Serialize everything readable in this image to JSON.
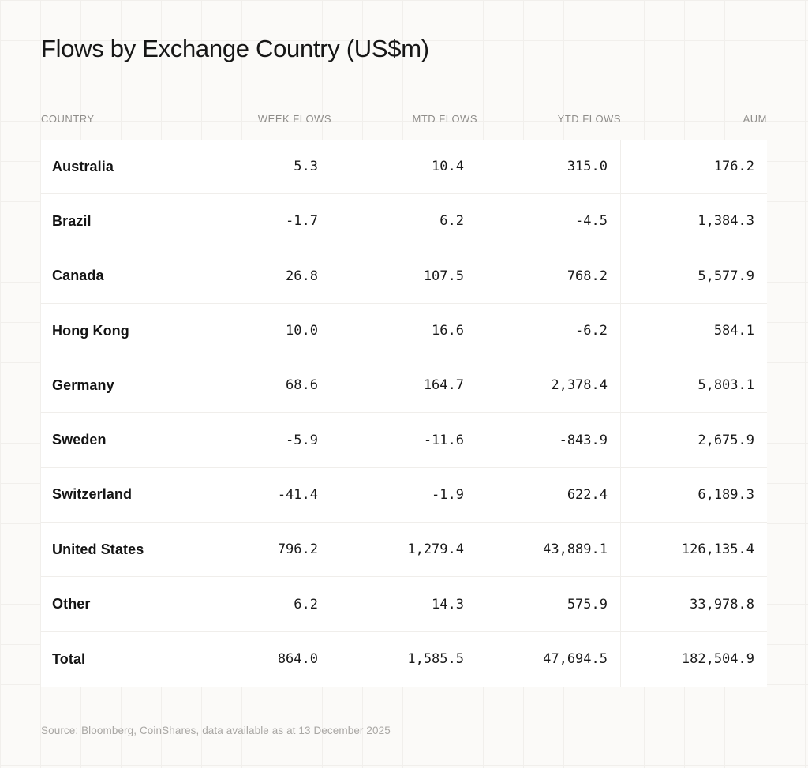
{
  "title": "Flows by Exchange Country (US$m)",
  "columns": {
    "country": "COUNTRY",
    "week": "WEEK FLOWS",
    "mtd": "MTD FLOWS",
    "ytd": "YTD FLOWS",
    "aum": "AUM"
  },
  "table": {
    "rows": [
      {
        "country": "Australia",
        "week": "5.3",
        "mtd": "10.4",
        "ytd": "315.0",
        "aum": "176.2"
      },
      {
        "country": "Brazil",
        "week": "-1.7",
        "mtd": "6.2",
        "ytd": "-4.5",
        "aum": "1,384.3"
      },
      {
        "country": "Canada",
        "week": "26.8",
        "mtd": "107.5",
        "ytd": "768.2",
        "aum": "5,577.9"
      },
      {
        "country": "Hong Kong",
        "week": "10.0",
        "mtd": "16.6",
        "ytd": "-6.2",
        "aum": "584.1"
      },
      {
        "country": "Germany",
        "week": "68.6",
        "mtd": "164.7",
        "ytd": "2,378.4",
        "aum": "5,803.1"
      },
      {
        "country": "Sweden",
        "week": "-5.9",
        "mtd": "-11.6",
        "ytd": "-843.9",
        "aum": "2,675.9"
      },
      {
        "country": "Switzerland",
        "week": "-41.4",
        "mtd": "-1.9",
        "ytd": "622.4",
        "aum": "6,189.3"
      },
      {
        "country": "United States",
        "week": "796.2",
        "mtd": "1,279.4",
        "ytd": "43,889.1",
        "aum": "126,135.4"
      },
      {
        "country": "Other",
        "week": "6.2",
        "mtd": "14.3",
        "ytd": "575.9",
        "aum": "33,978.8"
      },
      {
        "country": "Total",
        "week": "864.0",
        "mtd": "1,585.5",
        "ytd": "47,694.5",
        "aum": "182,504.9"
      }
    ]
  },
  "footer": {
    "source": "Source: Bloomberg, CoinShares, data available as at 13 December 2025"
  },
  "colors": {
    "page_background": "#fbfaf8",
    "grid_line": "#f1efec",
    "table_background": "#ffffff",
    "cell_border": "#f0eeeb",
    "text": "#161616",
    "column_header": "#8f8d8a",
    "source_text": "#a9a7a4"
  },
  "chart_data": {
    "type": "table",
    "title": "Flows by Exchange Country (US$m)",
    "columns": [
      "COUNTRY",
      "WEEK FLOWS",
      "MTD FLOWS",
      "YTD FLOWS",
      "AUM"
    ],
    "rows": [
      [
        "Australia",
        5.3,
        10.4,
        315.0,
        176.2
      ],
      [
        "Brazil",
        -1.7,
        6.2,
        -4.5,
        1384.3
      ],
      [
        "Canada",
        26.8,
        107.5,
        768.2,
        5577.9
      ],
      [
        "Hong Kong",
        10.0,
        16.6,
        -6.2,
        584.1
      ],
      [
        "Germany",
        68.6,
        164.7,
        2378.4,
        5803.1
      ],
      [
        "Sweden",
        -5.9,
        -11.6,
        -843.9,
        2675.9
      ],
      [
        "Switzerland",
        -41.4,
        -1.9,
        622.4,
        6189.3
      ],
      [
        "United States",
        796.2,
        1279.4,
        43889.1,
        126135.4
      ],
      [
        "Other",
        6.2,
        14.3,
        575.9,
        33978.8
      ],
      [
        "Total",
        864.0,
        1585.5,
        47694.5,
        182504.9
      ]
    ],
    "source": "Source: Bloomberg, CoinShares, data available as at 13 December 2025"
  }
}
